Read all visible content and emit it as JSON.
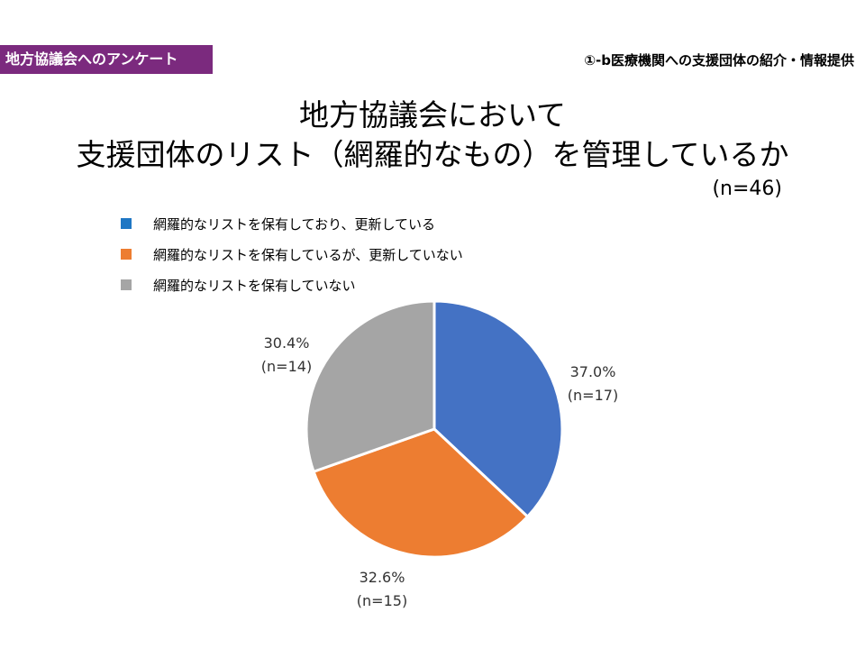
{
  "header": {
    "badge": "地方協議会へのアンケート",
    "section": "①-b医療機関への支援団体の紹介・情報提供"
  },
  "chart_data": {
    "type": "pie",
    "title_line1": "地方協議会において",
    "title_line2": "支援団体のリスト（網羅的なもの）を管理しているか",
    "total_label": "(n=46)",
    "legend_placement": "top-left",
    "slices": [
      {
        "name": "網羅的なリストを保有しており、更新している",
        "value": 37.0,
        "pct_label": "37.0%",
        "n_label": "(n=17)",
        "color": "#4472c4"
      },
      {
        "name": "網羅的なリストを保有しているが、更新していない",
        "value": 32.6,
        "pct_label": "32.6%",
        "n_label": "(n=15)",
        "color": "#ed7d31"
      },
      {
        "name": "網羅的なリストを保有していない",
        "value": 30.4,
        "pct_label": "30.4%",
        "n_label": "(n=14)",
        "color": "#a5a5a5"
      }
    ],
    "legend_colors": [
      "#1f77c4",
      "#ed7d31",
      "#a5a5a5"
    ]
  }
}
